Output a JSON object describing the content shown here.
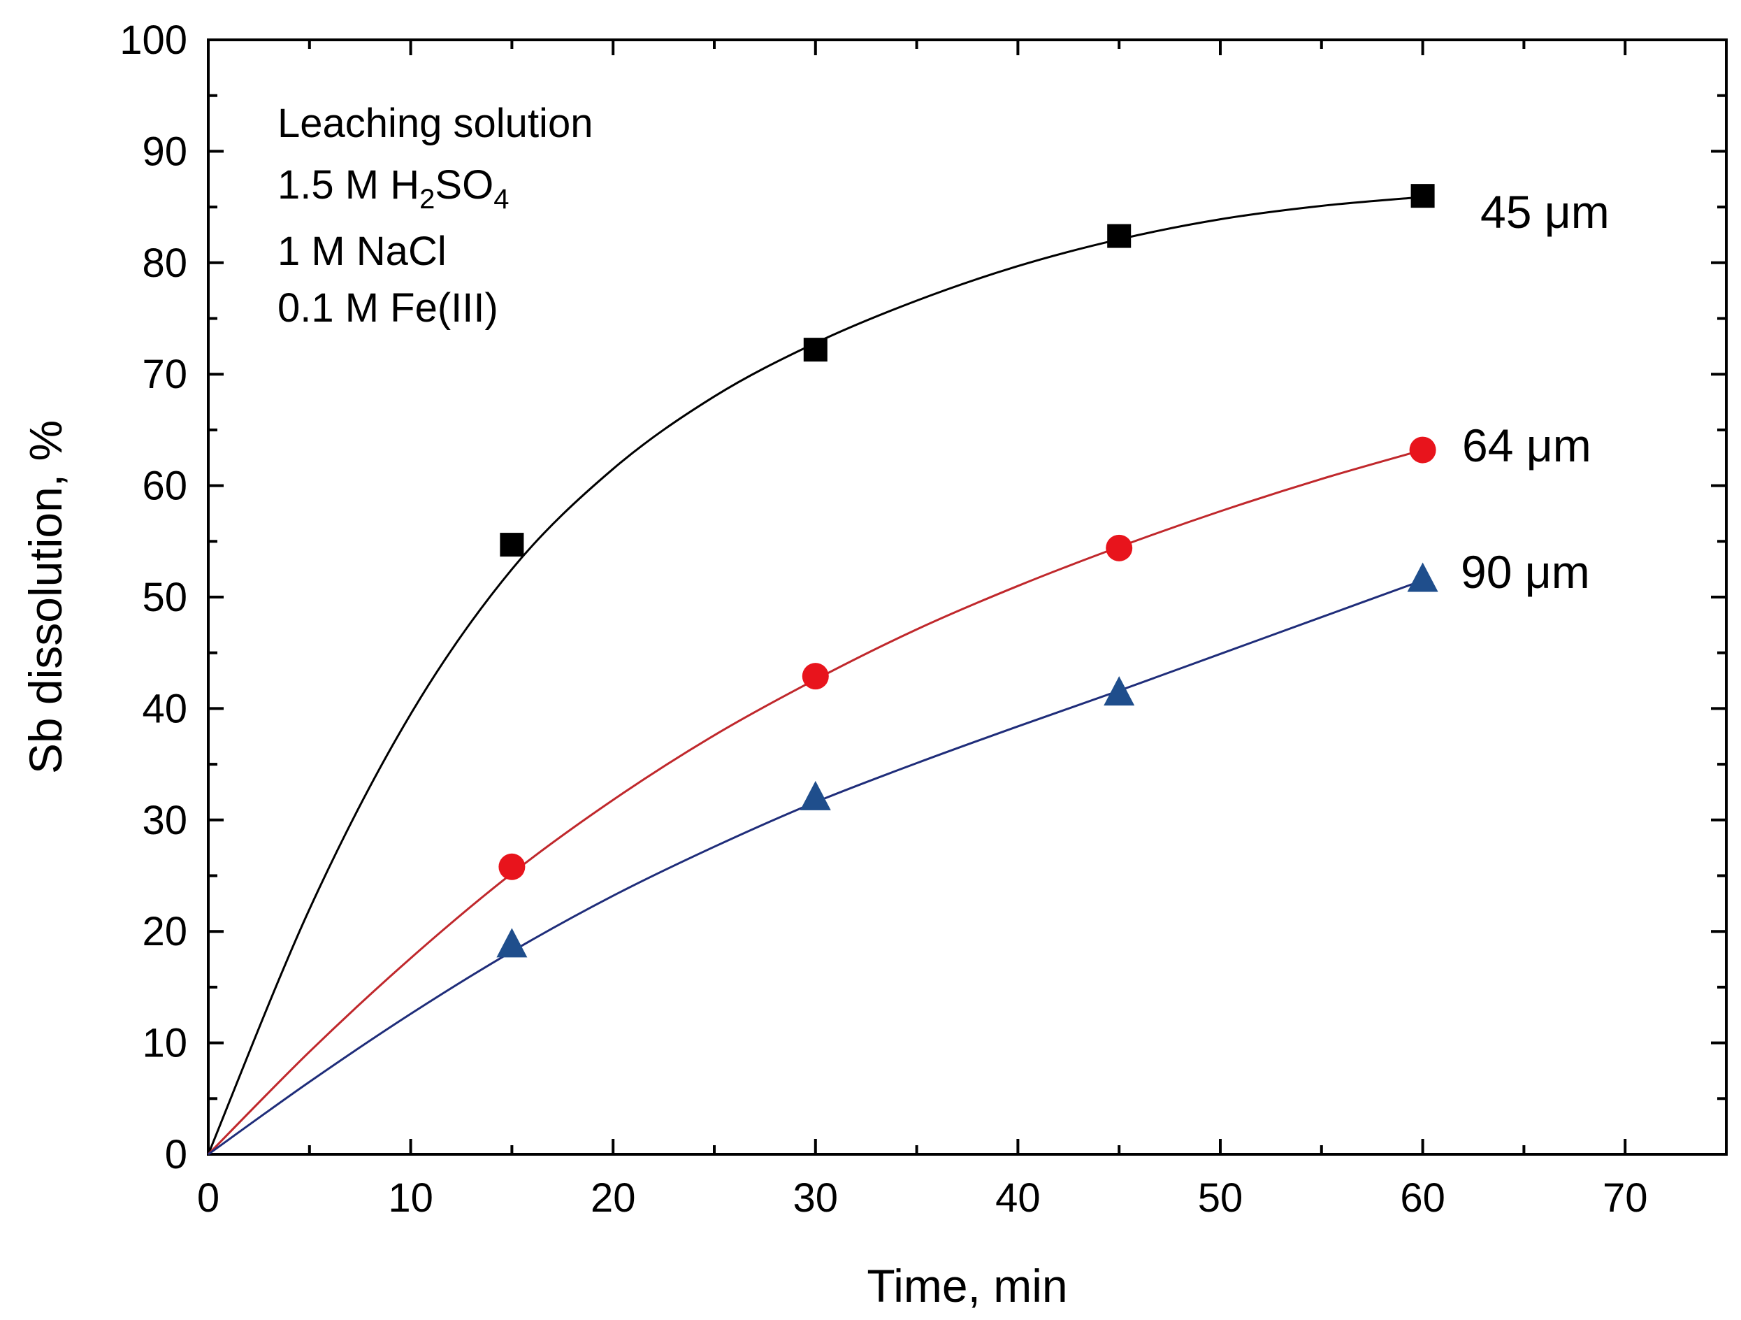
{
  "chart_data": {
    "type": "line",
    "xlabel": "Time, min",
    "ylabel": "Sb dissolution, %",
    "xlim": [
      0,
      75
    ],
    "ylim": [
      0,
      100
    ],
    "xticks": [
      0,
      10,
      20,
      30,
      40,
      50,
      60,
      70
    ],
    "yticks": [
      0,
      10,
      20,
      30,
      40,
      50,
      60,
      70,
      80,
      90,
      100
    ],
    "grid": false,
    "annotation": {
      "line1": "Leaching solution",
      "line2": "1.5 M H2SO4",
      "line3": "1 M NaCl",
      "line4": "0.1 M Fe(III)"
    },
    "series": [
      {
        "name": "45 μm",
        "marker": "square",
        "color": "#000000",
        "line_color": "#000000",
        "x": [
          15,
          30,
          45,
          60
        ],
        "values": [
          54.7,
          72.2,
          82.4,
          86.0
        ],
        "fit": [
          [
            0,
            0
          ],
          [
            5,
            22
          ],
          [
            10,
            39.5
          ],
          [
            15,
            52.5
          ],
          [
            20,
            61.5
          ],
          [
            25,
            68
          ],
          [
            30,
            72.8
          ],
          [
            35,
            76.6
          ],
          [
            40,
            79.7
          ],
          [
            45,
            82.1
          ],
          [
            50,
            83.9
          ],
          [
            55,
            85.1
          ],
          [
            60,
            85.9
          ]
        ]
      },
      {
        "name": "64 μm",
        "marker": "circle",
        "color": "#e8141c",
        "line_color": "#c0282c",
        "x": [
          15,
          30,
          45,
          60
        ],
        "values": [
          25.8,
          42.9,
          54.4,
          63.2
        ],
        "fit": [
          [
            0,
            0
          ],
          [
            5,
            9.2
          ],
          [
            10,
            17.6
          ],
          [
            15,
            25.2
          ],
          [
            20,
            31.8
          ],
          [
            25,
            37.6
          ],
          [
            30,
            42.6
          ],
          [
            35,
            47.1
          ],
          [
            40,
            51.0
          ],
          [
            45,
            54.5
          ],
          [
            50,
            57.7
          ],
          [
            55,
            60.6
          ],
          [
            60,
            63.2
          ]
        ]
      },
      {
        "name": "90 μm",
        "marker": "triangle",
        "color": "#1f4e8c",
        "line_color": "#1f2d7a",
        "x": [
          15,
          30,
          45,
          60
        ],
        "values": [
          18.8,
          32.0,
          41.4,
          51.6
        ],
        "fit": [
          [
            0,
            0
          ],
          [
            5,
            6.5
          ],
          [
            10,
            12.6
          ],
          [
            15,
            18.2
          ],
          [
            20,
            23.2
          ],
          [
            25,
            27.6
          ],
          [
            30,
            31.6
          ],
          [
            35,
            35.1
          ],
          [
            40,
            38.4
          ],
          [
            45,
            41.6
          ],
          [
            50,
            44.9
          ],
          [
            55,
            48.2
          ],
          [
            60,
            51.5
          ]
        ]
      }
    ]
  }
}
